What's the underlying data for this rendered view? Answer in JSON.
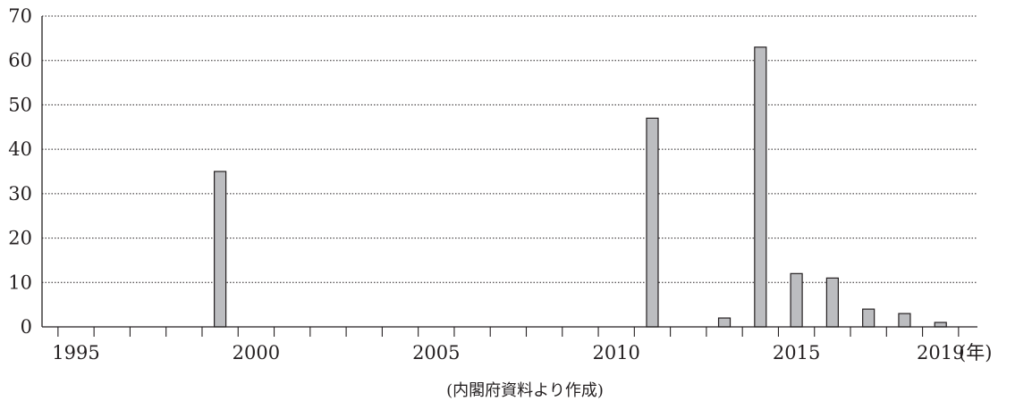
{
  "chart_data": {
    "type": "bar",
    "x_unit": "(年)",
    "source": "(内閣府資料より作成)",
    "categories": [
      1995,
      1996,
      1997,
      1998,
      1999,
      2000,
      2001,
      2002,
      2003,
      2004,
      2005,
      2006,
      2007,
      2008,
      2009,
      2010,
      2011,
      2012,
      2013,
      2014,
      2015,
      2016,
      2017,
      2018,
      2019
    ],
    "values": [
      0,
      0,
      0,
      0,
      35,
      0,
      0,
      0,
      0,
      0,
      0,
      0,
      0,
      0,
      0,
      0,
      47,
      0,
      2,
      63,
      12,
      11,
      4,
      3,
      1
    ],
    "x_tick_labels": [
      "1995",
      "2000",
      "2005",
      "2010",
      "2015",
      "2019"
    ],
    "y_ticks": [
      0,
      10,
      20,
      30,
      40,
      50,
      60,
      70
    ],
    "ylim": [
      0,
      70
    ],
    "grid": "horizontal dotted",
    "legend": "none",
    "colors": {
      "bar_fill": "#bcbdc0",
      "bar_stroke": "#231f20",
      "axis": "#231f20",
      "grid": "#231f20"
    }
  }
}
